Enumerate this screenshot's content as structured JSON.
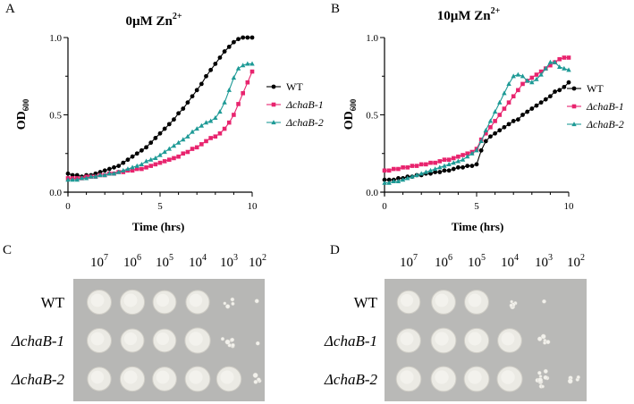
{
  "chart_data": [
    {
      "panel": "A",
      "type": "line",
      "title_main": "0µM Zn",
      "title_sup": "2+",
      "xlabel": "Time (hrs)",
      "ylabel_main": "OD",
      "ylabel_sub": "600",
      "xlim": [
        0,
        10
      ],
      "ylim": [
        0,
        1.0
      ],
      "x_ticks": [
        "0",
        "5",
        "10"
      ],
      "y_ticks": [
        "0.0",
        "0.5",
        "1.0"
      ],
      "grid": false,
      "legend_position": "right",
      "series": [
        {
          "name": "WT",
          "italic": false,
          "color": "#000000",
          "marker": "circle",
          "x": [
            0,
            0.25,
            0.5,
            0.75,
            1,
            1.25,
            1.5,
            1.75,
            2,
            2.25,
            2.5,
            2.75,
            3,
            3.25,
            3.5,
            3.75,
            4,
            4.25,
            4.5,
            4.75,
            5,
            5.25,
            5.5,
            5.75,
            6,
            6.25,
            6.5,
            6.75,
            7,
            7.25,
            7.5,
            7.75,
            8,
            8.25,
            8.5,
            8.75,
            9,
            9.25,
            9.5,
            9.75,
            10
          ],
          "y": [
            0.12,
            0.11,
            0.11,
            0.1,
            0.11,
            0.11,
            0.12,
            0.13,
            0.14,
            0.15,
            0.16,
            0.17,
            0.19,
            0.21,
            0.23,
            0.25,
            0.27,
            0.29,
            0.32,
            0.35,
            0.38,
            0.41,
            0.44,
            0.47,
            0.51,
            0.54,
            0.58,
            0.62,
            0.66,
            0.7,
            0.75,
            0.79,
            0.83,
            0.87,
            0.91,
            0.94,
            0.97,
            0.99,
            1.0,
            1.0,
            1.0
          ]
        },
        {
          "name": "ΔchaB-1",
          "italic": true,
          "color": "#e8246e",
          "marker": "square",
          "x": [
            0,
            0.25,
            0.5,
            0.75,
            1,
            1.25,
            1.5,
            1.75,
            2,
            2.25,
            2.5,
            2.75,
            3,
            3.25,
            3.5,
            3.75,
            4,
            4.25,
            4.5,
            4.75,
            5,
            5.25,
            5.5,
            5.75,
            6,
            6.25,
            6.5,
            6.75,
            7,
            7.25,
            7.5,
            7.75,
            8,
            8.25,
            8.5,
            8.75,
            9,
            9.25,
            9.5,
            9.75,
            10
          ],
          "y": [
            0.09,
            0.09,
            0.09,
            0.09,
            0.1,
            0.1,
            0.1,
            0.11,
            0.11,
            0.12,
            0.12,
            0.13,
            0.13,
            0.14,
            0.14,
            0.15,
            0.15,
            0.16,
            0.17,
            0.18,
            0.19,
            0.2,
            0.21,
            0.22,
            0.23,
            0.25,
            0.26,
            0.28,
            0.29,
            0.31,
            0.33,
            0.35,
            0.36,
            0.38,
            0.41,
            0.45,
            0.5,
            0.57,
            0.64,
            0.71,
            0.78
          ]
        },
        {
          "name": "ΔchaB-2",
          "italic": true,
          "color": "#1e9a96",
          "marker": "triangle",
          "x": [
            0,
            0.25,
            0.5,
            0.75,
            1,
            1.25,
            1.5,
            1.75,
            2,
            2.25,
            2.5,
            2.75,
            3,
            3.25,
            3.5,
            3.75,
            4,
            4.25,
            4.5,
            4.75,
            5,
            5.25,
            5.5,
            5.75,
            6,
            6.25,
            6.5,
            6.75,
            7,
            7.25,
            7.5,
            7.75,
            8,
            8.25,
            8.5,
            8.75,
            9,
            9.25,
            9.5,
            9.75,
            10
          ],
          "y": [
            0.08,
            0.08,
            0.08,
            0.09,
            0.09,
            0.1,
            0.1,
            0.11,
            0.11,
            0.12,
            0.12,
            0.13,
            0.14,
            0.15,
            0.16,
            0.17,
            0.18,
            0.2,
            0.21,
            0.22,
            0.24,
            0.26,
            0.28,
            0.3,
            0.32,
            0.34,
            0.36,
            0.39,
            0.41,
            0.43,
            0.45,
            0.46,
            0.48,
            0.52,
            0.58,
            0.66,
            0.74,
            0.8,
            0.82,
            0.83,
            0.83
          ]
        }
      ]
    },
    {
      "panel": "B",
      "type": "line",
      "title_main": "10µM Zn",
      "title_sup": "2+",
      "xlabel": "Time (hrs)",
      "ylabel_main": "OD",
      "ylabel_sub": "600",
      "xlim": [
        0,
        10
      ],
      "ylim": [
        0,
        1.0
      ],
      "x_ticks": [
        "0",
        "5",
        "10"
      ],
      "y_ticks": [
        "0.0",
        "0.5",
        "1.0"
      ],
      "grid": false,
      "legend_position": "right",
      "series": [
        {
          "name": "WT",
          "italic": false,
          "color": "#000000",
          "marker": "circle",
          "x": [
            0,
            0.25,
            0.5,
            0.75,
            1,
            1.25,
            1.5,
            1.75,
            2,
            2.25,
            2.5,
            2.75,
            3,
            3.25,
            3.5,
            3.75,
            4,
            4.25,
            4.5,
            4.75,
            5,
            5.25,
            5.5,
            5.75,
            6,
            6.25,
            6.5,
            6.75,
            7,
            7.25,
            7.5,
            7.75,
            8,
            8.25,
            8.5,
            8.75,
            9,
            9.25,
            9.5,
            9.75,
            10
          ],
          "y": [
            0.08,
            0.08,
            0.08,
            0.09,
            0.09,
            0.1,
            0.1,
            0.11,
            0.11,
            0.12,
            0.12,
            0.13,
            0.13,
            0.14,
            0.14,
            0.15,
            0.16,
            0.16,
            0.17,
            0.17,
            0.18,
            0.27,
            0.33,
            0.36,
            0.38,
            0.4,
            0.42,
            0.44,
            0.46,
            0.47,
            0.5,
            0.52,
            0.54,
            0.56,
            0.58,
            0.6,
            0.62,
            0.65,
            0.66,
            0.68,
            0.71
          ]
        },
        {
          "name": "ΔchaB-1",
          "italic": true,
          "color": "#e8246e",
          "marker": "square",
          "x": [
            0,
            0.25,
            0.5,
            0.75,
            1,
            1.25,
            1.5,
            1.75,
            2,
            2.25,
            2.5,
            2.75,
            3,
            3.25,
            3.5,
            3.75,
            4,
            4.25,
            4.5,
            4.75,
            5,
            5.25,
            5.5,
            5.75,
            6,
            6.25,
            6.5,
            6.75,
            7,
            7.25,
            7.5,
            7.75,
            8,
            8.25,
            8.5,
            8.75,
            9,
            9.25,
            9.5,
            9.75,
            10
          ],
          "y": [
            0.14,
            0.14,
            0.15,
            0.15,
            0.16,
            0.16,
            0.17,
            0.17,
            0.18,
            0.18,
            0.19,
            0.19,
            0.2,
            0.21,
            0.21,
            0.22,
            0.23,
            0.24,
            0.25,
            0.26,
            0.28,
            0.34,
            0.38,
            0.42,
            0.46,
            0.5,
            0.54,
            0.58,
            0.62,
            0.66,
            0.7,
            0.72,
            0.74,
            0.76,
            0.78,
            0.8,
            0.82,
            0.84,
            0.86,
            0.87,
            0.87
          ]
        },
        {
          "name": "ΔchaB-2",
          "italic": true,
          "color": "#1e9a96",
          "marker": "triangle",
          "x": [
            0,
            0.25,
            0.5,
            0.75,
            1,
            1.25,
            1.5,
            1.75,
            2,
            2.25,
            2.5,
            2.75,
            3,
            3.25,
            3.5,
            3.75,
            4,
            4.25,
            4.5,
            4.75,
            5,
            5.25,
            5.5,
            5.75,
            6,
            6.25,
            6.5,
            6.75,
            7,
            7.25,
            7.5,
            7.75,
            8,
            8.25,
            8.5,
            8.75,
            9,
            9.25,
            9.5,
            9.75,
            10
          ],
          "y": [
            0.06,
            0.06,
            0.07,
            0.07,
            0.08,
            0.09,
            0.1,
            0.11,
            0.12,
            0.13,
            0.14,
            0.15,
            0.16,
            0.17,
            0.18,
            0.19,
            0.2,
            0.21,
            0.23,
            0.25,
            0.27,
            0.33,
            0.4,
            0.46,
            0.52,
            0.58,
            0.64,
            0.7,
            0.75,
            0.76,
            0.75,
            0.72,
            0.71,
            0.73,
            0.76,
            0.8,
            0.84,
            0.84,
            0.81,
            0.8,
            0.79
          ]
        }
      ]
    }
  ],
  "plates": [
    {
      "panel": "C",
      "dilutions": [
        {
          "base": "10",
          "exp": "7"
        },
        {
          "base": "10",
          "exp": "6"
        },
        {
          "base": "10",
          "exp": "5"
        },
        {
          "base": "10",
          "exp": "4"
        },
        {
          "base": "10",
          "exp": "3"
        },
        {
          "base": "10",
          "exp": "2"
        }
      ],
      "rows": [
        {
          "label": "WT",
          "italic": false,
          "growth": [
            1,
            1,
            1,
            0.85,
            0.3,
            0.02
          ]
        },
        {
          "label": "ΔchaB-1",
          "italic": true,
          "growth": [
            1,
            1,
            1,
            0.9,
            0.5,
            0.02
          ]
        },
        {
          "label": "ΔchaB-2",
          "italic": true,
          "growth": [
            1,
            1,
            1,
            0.95,
            0.85,
            0.3
          ]
        }
      ]
    },
    {
      "panel": "D",
      "dilutions": [
        {
          "base": "10",
          "exp": "7"
        },
        {
          "base": "10",
          "exp": "6"
        },
        {
          "base": "10",
          "exp": "5"
        },
        {
          "base": "10",
          "exp": "4"
        },
        {
          "base": "10",
          "exp": "3"
        },
        {
          "base": "10",
          "exp": "2"
        }
      ],
      "rows": [
        {
          "label": "WT",
          "italic": false,
          "growth": [
            1,
            1,
            0.9,
            0.35,
            0.1,
            0
          ]
        },
        {
          "label": "ΔchaB-1",
          "italic": true,
          "growth": [
            1,
            1,
            0.95,
            0.85,
            0.35,
            0
          ]
        },
        {
          "label": "ΔchaB-2",
          "italic": true,
          "growth": [
            1,
            1,
            1,
            0.95,
            0.7,
            0.3
          ]
        }
      ]
    }
  ]
}
